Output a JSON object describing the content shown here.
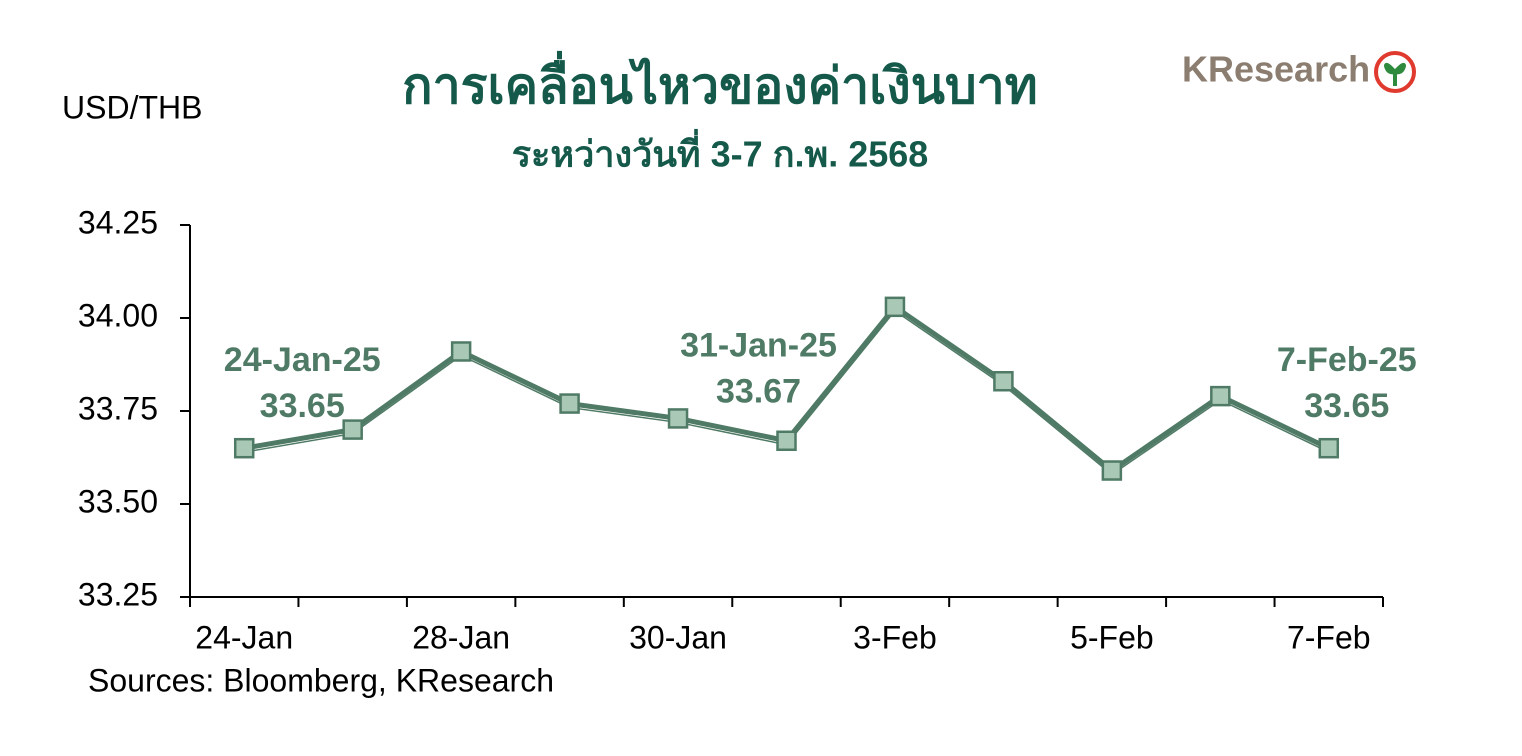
{
  "chart_data": {
    "type": "line",
    "title": "การเคลื่อนไหวของค่าเงินบาท",
    "subtitle": "ระหว่างวันที่ 3-7 ก.พ. 2568",
    "y_label": "USD/THB",
    "source": "Sources: Bloomberg, KResearch",
    "logo": "KResearch",
    "categories": [
      "24-Jan",
      null,
      "28-Jan",
      null,
      "30-Jan",
      null,
      "3-Feb",
      null,
      "5-Feb",
      null,
      "7-Feb"
    ],
    "values": [
      33.65,
      33.7,
      33.91,
      33.77,
      33.73,
      33.67,
      34.03,
      33.83,
      33.59,
      33.79,
      33.65
    ],
    "value_labels": [
      "33.65",
      null,
      null,
      null,
      null,
      "33.67",
      null,
      null,
      null,
      null,
      "33.65"
    ],
    "point_labels": [
      "24-Jan-25",
      null,
      null,
      null,
      null,
      "31-Jan-25",
      null,
      null,
      null,
      null,
      "7-Feb-25"
    ],
    "color": "#4f7a65",
    "marker_color": "#a9c9b6",
    "ylim": [
      33.25,
      34.25
    ],
    "yticks": [
      33.25,
      {
        "value": 33.5,
        "label": "33.50"
      },
      33.75,
      {
        "value": 34,
        "label": "34.00"
      },
      34.25
    ]
  }
}
